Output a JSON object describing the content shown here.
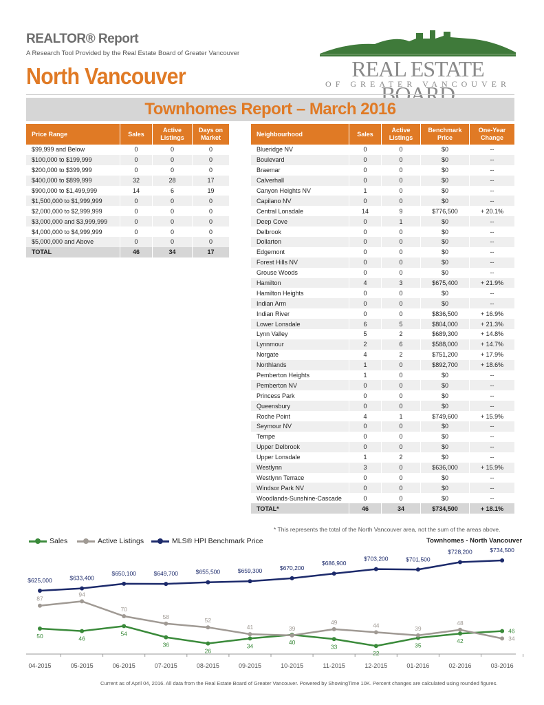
{
  "header": {
    "report_title": "REALTOR® Report",
    "subtitle": "A Research Tool Provided by the Real Estate Board of Greater Vancouver",
    "area": "North Vancouver",
    "logo_line1": "REAL ESTATE BOARD",
    "logo_line2": "OF GREATER VANCOUVER",
    "banner": "Townhomes Report – March 2016"
  },
  "price_table": {
    "headers": [
      "Price Range",
      "Sales",
      "Active Listings",
      "Days on Market"
    ],
    "rows": [
      [
        "$99,999 and Below",
        "0",
        "0",
        "0"
      ],
      [
        "$100,000 to $199,999",
        "0",
        "0",
        "0"
      ],
      [
        "$200,000 to $399,999",
        "0",
        "0",
        "0"
      ],
      [
        "$400,000 to $899,999",
        "32",
        "28",
        "17"
      ],
      [
        "$900,000 to $1,499,999",
        "14",
        "6",
        "19"
      ],
      [
        "$1,500,000 to $1,999,999",
        "0",
        "0",
        "0"
      ],
      [
        "$2,000,000 to $2,999,999",
        "0",
        "0",
        "0"
      ],
      [
        "$3,000,000 and $3,999,999",
        "0",
        "0",
        "0"
      ],
      [
        "$4,000,000 to $4,999,999",
        "0",
        "0",
        "0"
      ],
      [
        "$5,000,000 and Above",
        "0",
        "0",
        "0"
      ]
    ],
    "total": [
      "TOTAL",
      "46",
      "34",
      "17"
    ]
  },
  "neighbourhood_table": {
    "headers": [
      "Neighbourhood",
      "Sales",
      "Active Listings",
      "Benchmark Price",
      "One-Year Change"
    ],
    "rows": [
      [
        "Blueridge NV",
        "0",
        "0",
        "$0",
        "--"
      ],
      [
        "Boulevard",
        "0",
        "0",
        "$0",
        "--"
      ],
      [
        "Braemar",
        "0",
        "0",
        "$0",
        "--"
      ],
      [
        "Calverhall",
        "0",
        "0",
        "$0",
        "--"
      ],
      [
        "Canyon Heights NV",
        "1",
        "0",
        "$0",
        "--"
      ],
      [
        "Capilano NV",
        "0",
        "0",
        "$0",
        "--"
      ],
      [
        "Central Lonsdale",
        "14",
        "9",
        "$776,500",
        "+ 20.1%"
      ],
      [
        "Deep Cove",
        "0",
        "1",
        "$0",
        "--"
      ],
      [
        "Delbrook",
        "0",
        "0",
        "$0",
        "--"
      ],
      [
        "Dollarton",
        "0",
        "0",
        "$0",
        "--"
      ],
      [
        "Edgemont",
        "0",
        "0",
        "$0",
        "--"
      ],
      [
        "Forest Hills NV",
        "0",
        "0",
        "$0",
        "--"
      ],
      [
        "Grouse Woods",
        "0",
        "0",
        "$0",
        "--"
      ],
      [
        "Hamilton",
        "4",
        "3",
        "$675,400",
        "+ 21.9%"
      ],
      [
        "Hamilton Heights",
        "0",
        "0",
        "$0",
        "--"
      ],
      [
        "Indian Arm",
        "0",
        "0",
        "$0",
        "--"
      ],
      [
        "Indian River",
        "0",
        "0",
        "$836,500",
        "+ 16.9%"
      ],
      [
        "Lower Lonsdale",
        "6",
        "5",
        "$804,000",
        "+ 21.3%"
      ],
      [
        "Lynn Valley",
        "5",
        "2",
        "$689,300",
        "+ 14.8%"
      ],
      [
        "Lynnmour",
        "2",
        "6",
        "$588,000",
        "+ 14.7%"
      ],
      [
        "Norgate",
        "4",
        "2",
        "$751,200",
        "+ 17.9%"
      ],
      [
        "Northlands",
        "1",
        "0",
        "$892,700",
        "+ 18.6%"
      ],
      [
        "Pemberton Heights",
        "1",
        "0",
        "$0",
        "--"
      ],
      [
        "Pemberton NV",
        "0",
        "0",
        "$0",
        "--"
      ],
      [
        "Princess Park",
        "0",
        "0",
        "$0",
        "--"
      ],
      [
        "Queensbury",
        "0",
        "0",
        "$0",
        "--"
      ],
      [
        "Roche Point",
        "4",
        "1",
        "$749,600",
        "+ 15.9%"
      ],
      [
        "Seymour NV",
        "0",
        "0",
        "$0",
        "--"
      ],
      [
        "Tempe",
        "0",
        "0",
        "$0",
        "--"
      ],
      [
        "Upper Delbrook",
        "0",
        "0",
        "$0",
        "--"
      ],
      [
        "Upper Lonsdale",
        "1",
        "2",
        "$0",
        "--"
      ],
      [
        "Westlynn",
        "3",
        "0",
        "$636,000",
        "+ 15.9%"
      ],
      [
        "Westlynn Terrace",
        "0",
        "0",
        "$0",
        "--"
      ],
      [
        "Windsor Park NV",
        "0",
        "0",
        "$0",
        "--"
      ],
      [
        "Woodlands-Sunshine-Cascade",
        "0",
        "0",
        "$0",
        "--"
      ]
    ],
    "total": [
      "TOTAL*",
      "46",
      "34",
      "$734,500",
      "+ 18.1%"
    ]
  },
  "note": "* This represents the total of the North Vancouver area, not the sum of the areas above.",
  "chart_data": {
    "type": "line",
    "title": "Townhomes - North Vancouver",
    "categories": [
      "04-2015",
      "05-2015",
      "06-2015",
      "07-2015",
      "08-2015",
      "09-2015",
      "10-2015",
      "11-2015",
      "12-2015",
      "01-2016",
      "02-2016",
      "03-2016"
    ],
    "series": [
      {
        "name": "Sales",
        "color": "#3a8a3a",
        "values": [
          50,
          46,
          54,
          36,
          26,
          34,
          40,
          33,
          22,
          35,
          42,
          46
        ]
      },
      {
        "name": "Active Listings",
        "color": "#a09a94",
        "values": [
          87,
          94,
          70,
          58,
          52,
          41,
          39,
          49,
          44,
          39,
          48,
          34
        ]
      },
      {
        "name": "MLS® HPI Benchmark Price",
        "color": "#1c2a6b",
        "values": [
          625000,
          633400,
          650100,
          649700,
          655500,
          659300,
          670200,
          686900,
          703200,
          701500,
          728200,
          734500
        ],
        "labels": [
          "$625,000",
          "$633,400",
          "$650,100",
          "$649,700",
          "$655,500",
          "$659,300",
          "$670,200",
          "$686,900",
          "$703,200",
          "$701,500",
          "$728,200",
          "$734,500"
        ]
      }
    ]
  },
  "footer": "Current as of April 04, 2016. All data from the Real Estate Board of Greater Vancouver.  Powered by ShowingTime 10K. Percent changes are calculated using rounded figures."
}
